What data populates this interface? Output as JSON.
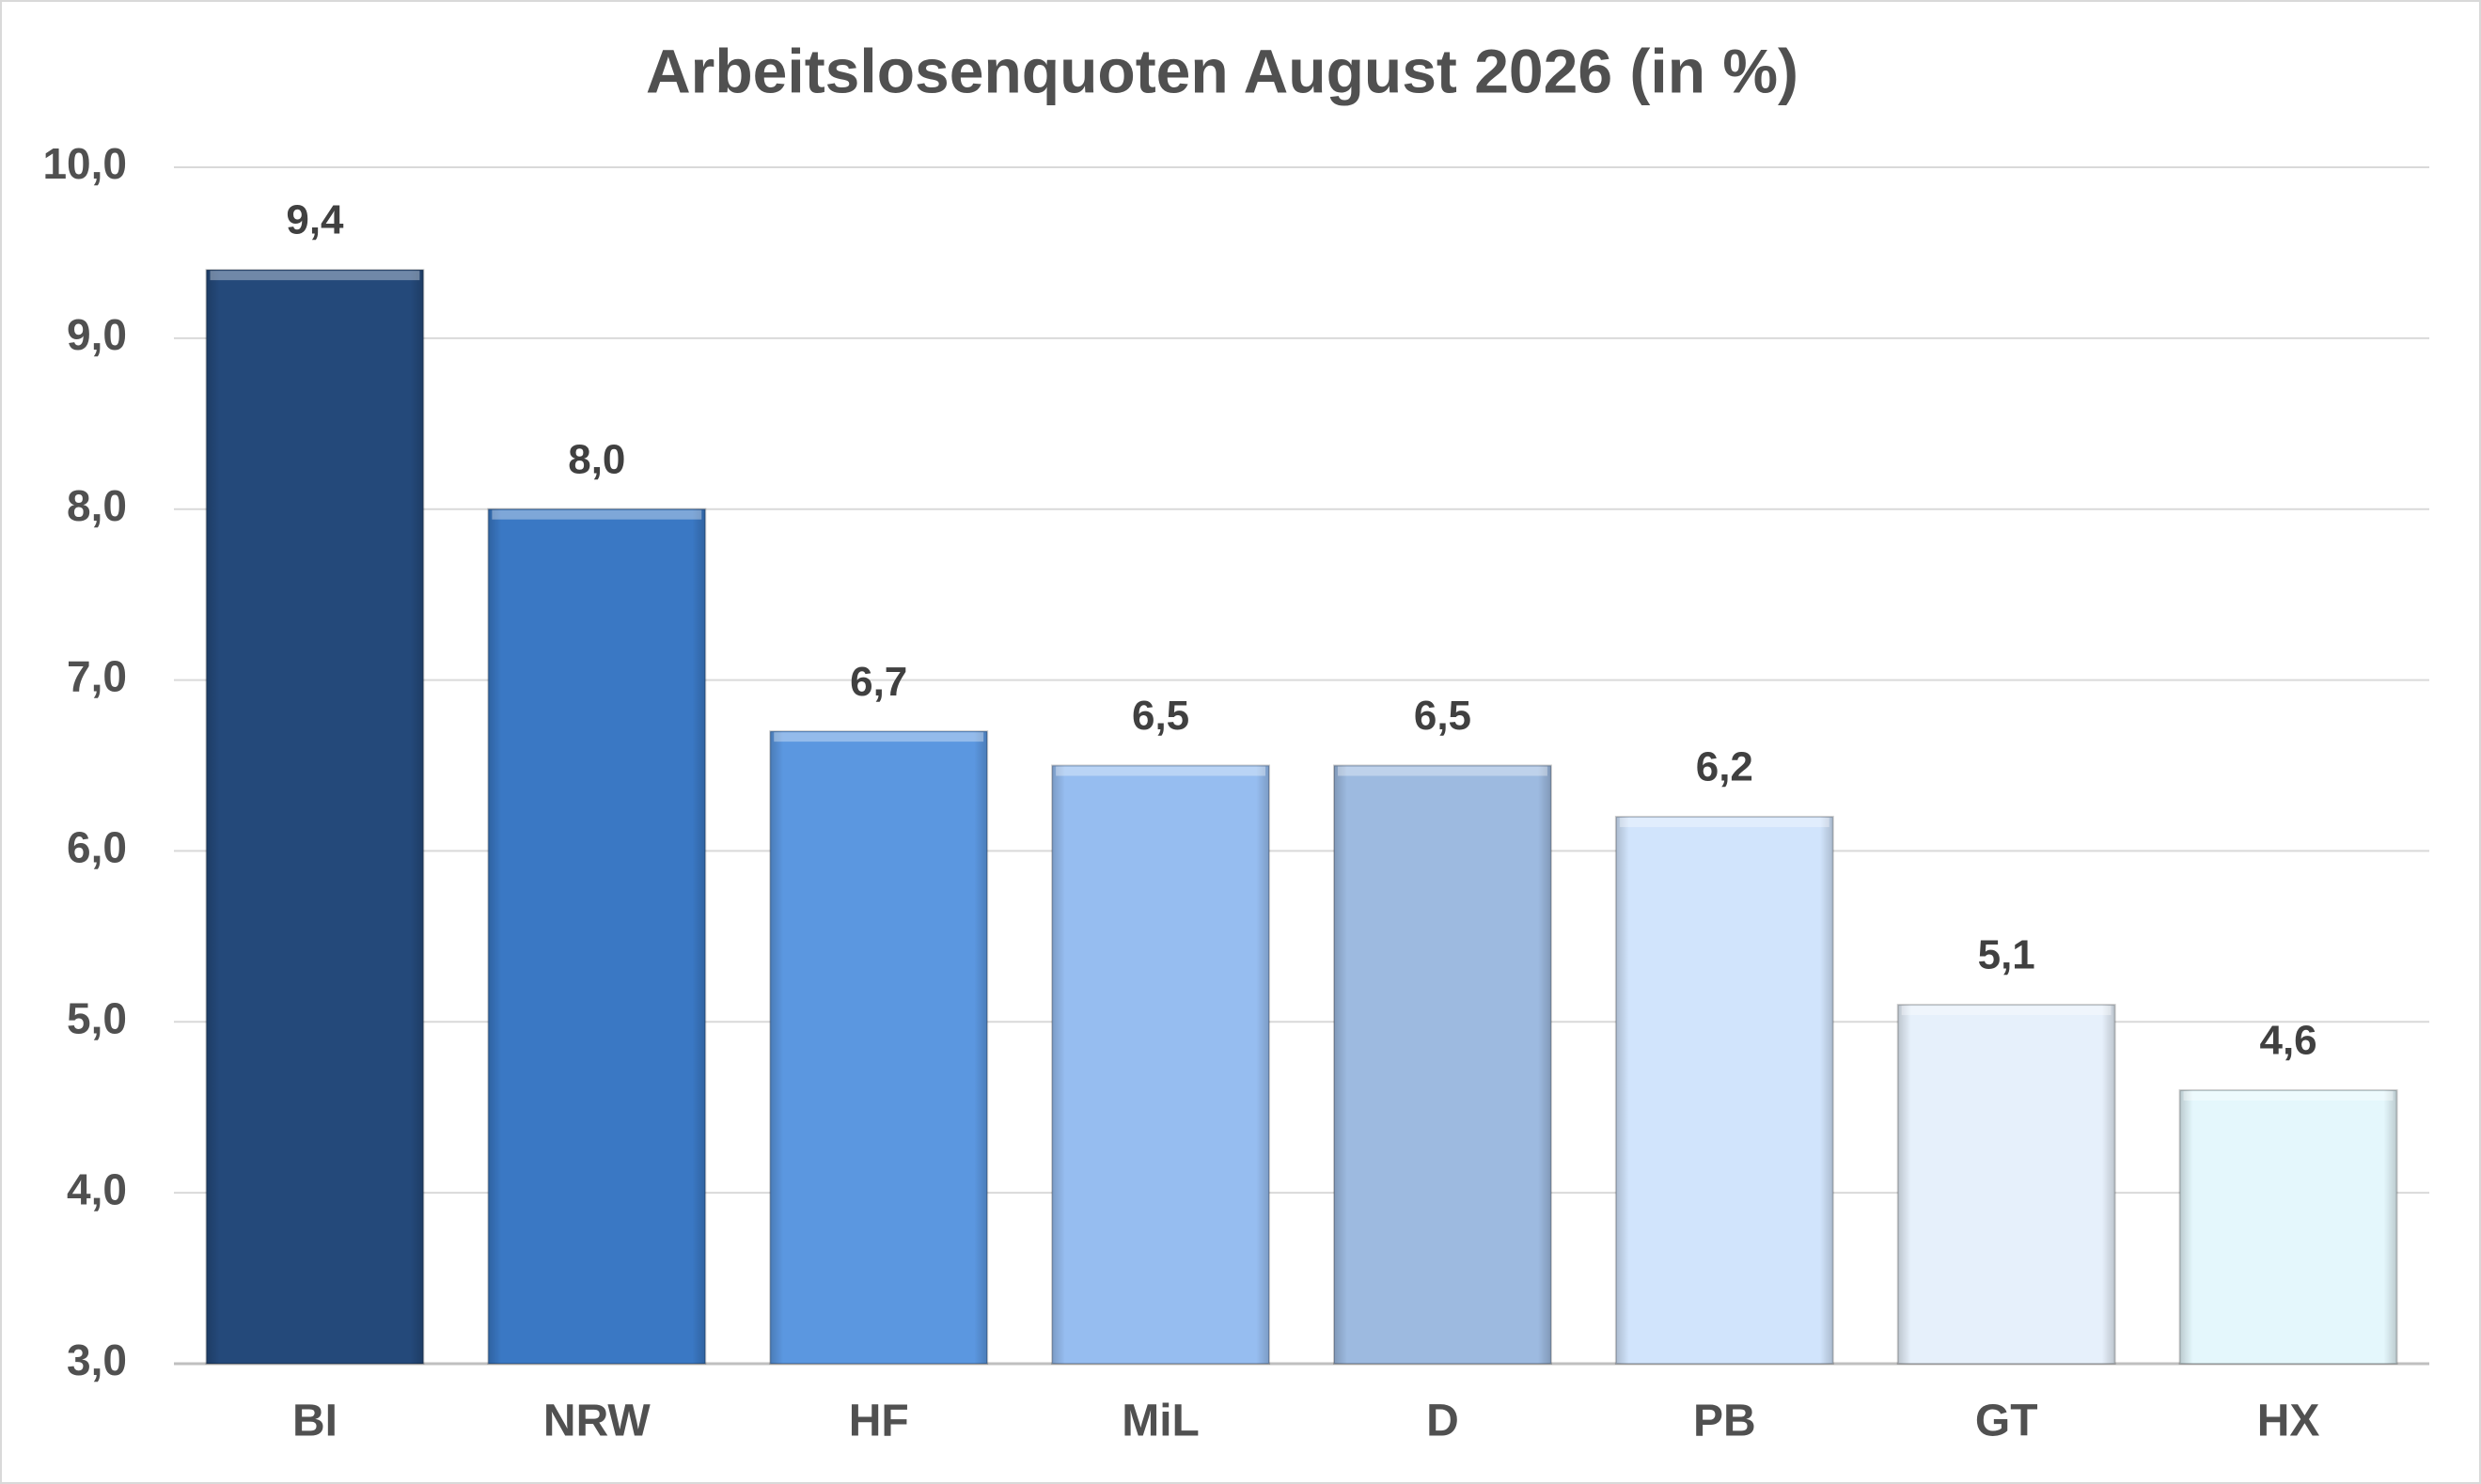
{
  "chart_data": {
    "type": "bar",
    "title": "Arbeitslosenquoten August 2026 (in %)",
    "categories": [
      "BI",
      "NRW",
      "HF",
      "MiL",
      "D",
      "PB",
      "GT",
      "HX"
    ],
    "values": [
      9.4,
      8.0,
      6.7,
      6.5,
      6.5,
      6.2,
      5.1,
      4.6
    ],
    "value_labels": [
      "9,4",
      "8,0",
      "6,7",
      "6,5",
      "6,5",
      "6,2",
      "5,1",
      "4,6"
    ],
    "colors": [
      "#24497a",
      "#3a78c4",
      "#5b97e0",
      "#96bdf0",
      "#9dbae0",
      "#d1e4fc",
      "#e6f0fb",
      "#e4f7fc"
    ],
    "ylim": [
      3,
      10
    ],
    "yticks": [
      {
        "value": 3,
        "label": "3,0"
      },
      {
        "value": 4,
        "label": "4,0"
      },
      {
        "value": 5,
        "label": "5,0"
      },
      {
        "value": 6,
        "label": "6,0"
      },
      {
        "value": 7,
        "label": "7,0"
      },
      {
        "value": 8,
        "label": "8,0"
      },
      {
        "value": 9,
        "label": "9,0"
      },
      {
        "value": 10,
        "label": "10,0"
      }
    ],
    "grid": true
  }
}
